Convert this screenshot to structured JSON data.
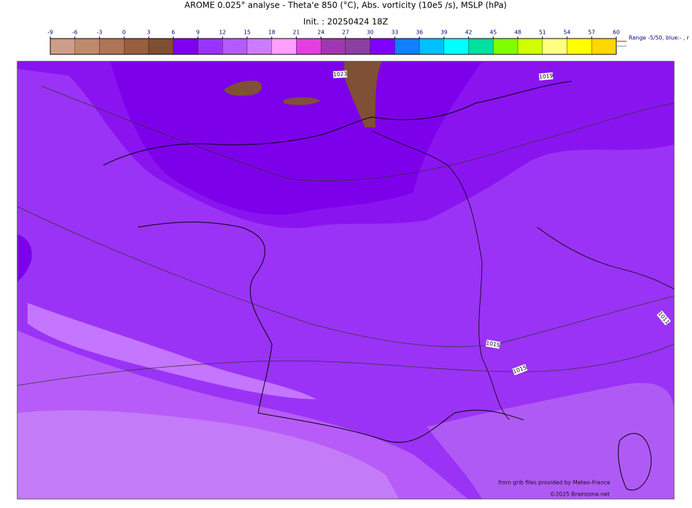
{
  "title": "AROME 0.025° analyse - Theta'e 850 (°C), Abs. vorticity (10e5 /s), MSLP (hPa)",
  "subtitle": "Init. : 20250424 18Z",
  "colorbar": {
    "ticks": [
      -9,
      -6,
      -3,
      0,
      3,
      6,
      9,
      12,
      15,
      18,
      21,
      24,
      27,
      30,
      33,
      36,
      39,
      42,
      45,
      48,
      51,
      54,
      57,
      60
    ],
    "colors": [
      "#cc9e89",
      "#bf8a6c",
      "#ae7456",
      "#985e3e",
      "#7f4f34",
      "#7f00ee",
      "#9933ff",
      "#b45bff",
      "#cc7bff",
      "#ffa0ff",
      "#e040e0",
      "#a037b0",
      "#8b3fa0",
      "#7f00ff",
      "#1080ff",
      "#00c0ff",
      "#00ffff",
      "#00e0a0",
      "#80ff00",
      "#d0ff00",
      "#ffff80",
      "#ffff00",
      "#ffd700"
    ]
  },
  "range_note": "Range -5/50, blue:- , r",
  "isobar_labels": [
    "1023",
    "1019",
    "1015",
    "1015",
    "1011"
  ],
  "credits": [
    "from grib files provided by Meteo-France",
    "©2025 Brainzone.net"
  ]
}
